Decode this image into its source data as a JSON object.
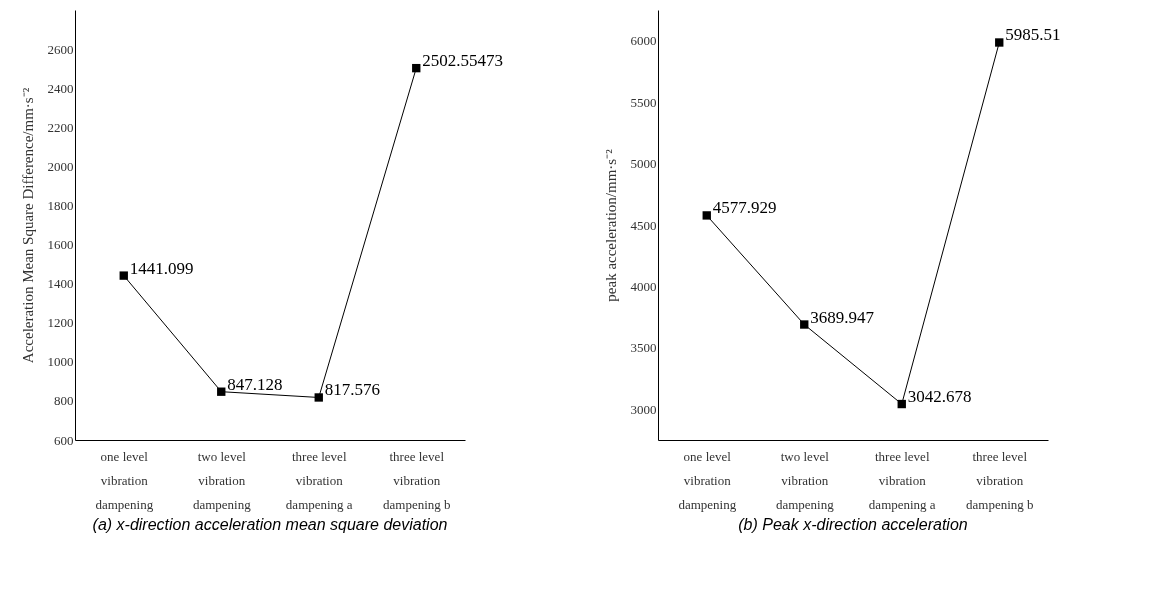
{
  "chart_data": [
    {
      "type": "line",
      "title": "(a) x-direction acceleration mean square deviation",
      "ylabel": "Acceleration Mean Square Difference/mm·s⁻²",
      "categories": [
        "one level vibration dampening",
        "two level vibration dampening",
        "three level vibration dampening a",
        "three level vibration dampening b"
      ],
      "series": [
        {
          "color": "#000000",
          "values": [
            1441.099,
            847.128,
            817.576,
            2502.55473
          ]
        }
      ],
      "ylim": [
        600,
        2800
      ],
      "yticks": [
        600,
        800,
        1000,
        1200,
        1400,
        1600,
        1800,
        2000,
        2200,
        2400,
        2600
      ],
      "grid": false,
      "marker": "square",
      "line_style": "solid",
      "data_labels": true
    },
    {
      "type": "line",
      "title": "(b) Peak x-direction acceleration",
      "ylabel": "peak acceleration/mm·s⁻²",
      "categories": [
        "one level vibration dampening",
        "two level vibration dampening",
        "three level vibration dampening a",
        "three level vibration dampening b"
      ],
      "series": [
        {
          "color": "#000000",
          "values": [
            4577.929,
            3689.947,
            3042.678,
            5985.51
          ]
        }
      ],
      "ylim": [
        2750,
        6250
      ],
      "yticks": [
        3000,
        3500,
        4000,
        4500,
        5000,
        5500,
        6000
      ],
      "grid": false,
      "marker": "square",
      "line_style": "solid",
      "data_labels": true
    }
  ]
}
